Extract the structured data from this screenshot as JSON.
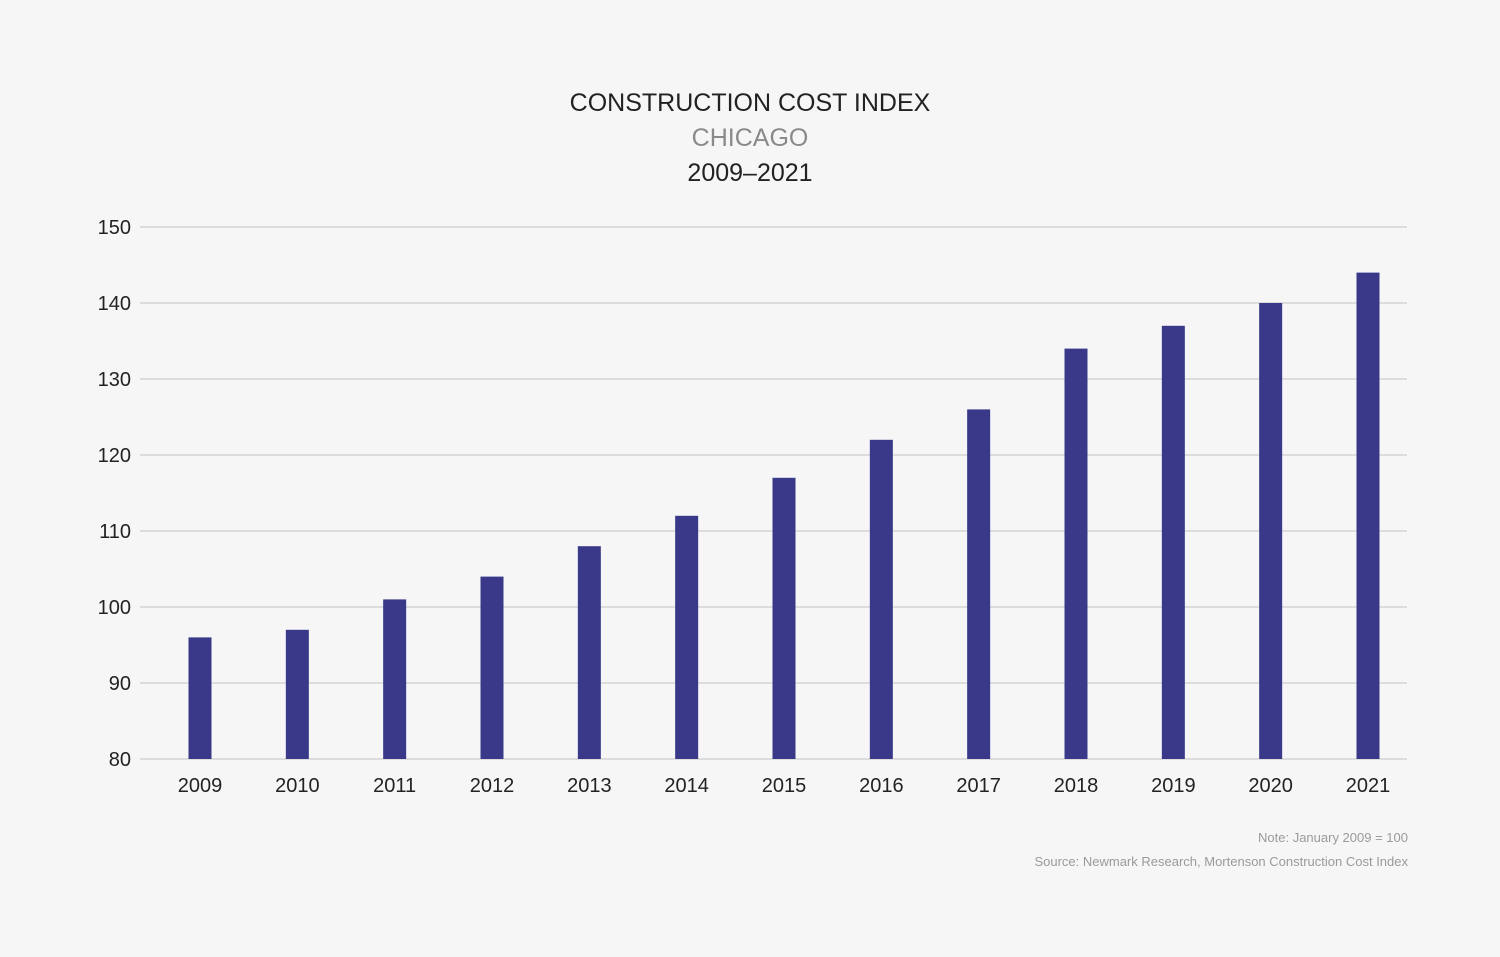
{
  "chart_data": {
    "type": "bar",
    "title": "CONSTRUCTION COST INDEX",
    "subtitle": "CHICAGO",
    "period": "2009–2021",
    "categories": [
      "2009",
      "2010",
      "2011",
      "2012",
      "2013",
      "2014",
      "2015",
      "2016",
      "2017",
      "2018",
      "2019",
      "2020",
      "2021"
    ],
    "values": [
      96,
      97,
      101,
      104,
      108,
      112,
      117,
      122,
      126,
      134,
      137,
      140,
      144
    ],
    "ylim": [
      80,
      150
    ],
    "yticks": [
      80,
      90,
      100,
      110,
      120,
      130,
      140,
      150
    ],
    "xlabel": "",
    "ylabel": "",
    "grid": true,
    "bar_color": "#3a3888",
    "grid_color": "#dcdcdc"
  },
  "notes": {
    "note": "Note: January 2009 = 100",
    "source": "Source: Newmark Research, Mortenson Construction Cost Index"
  }
}
